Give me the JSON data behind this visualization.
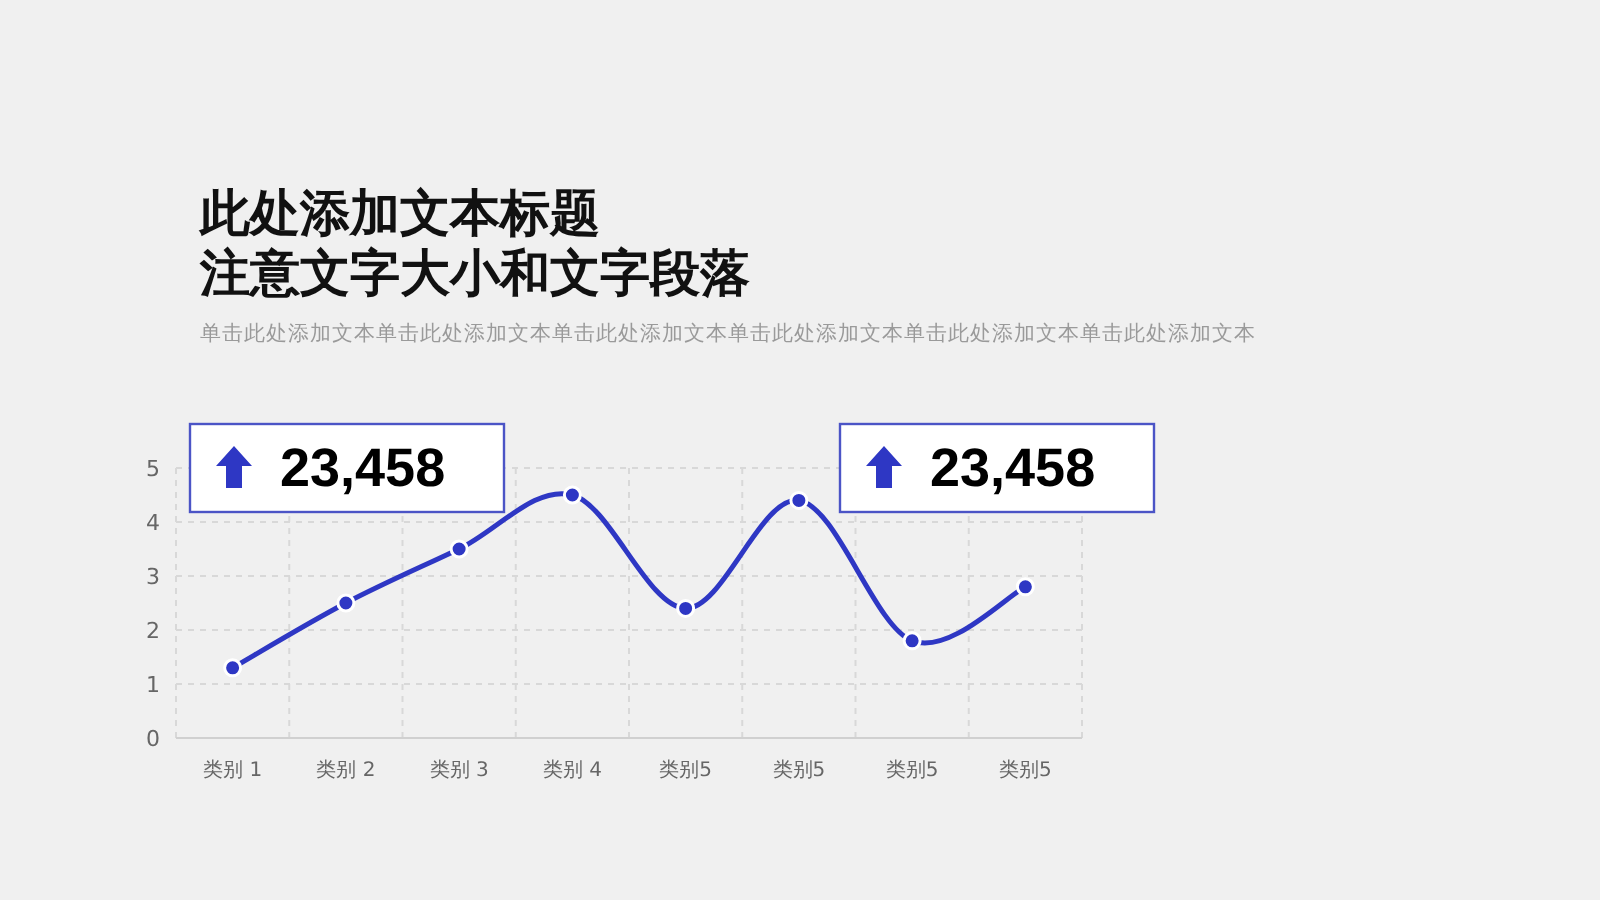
{
  "chart_data": {
    "type": "line",
    "title": "此处添加文本标题",
    "subtitle": "注意文字大小和文字段落",
    "categories": [
      "类别 1",
      "类别 2",
      "类别 3",
      "类别 4",
      "类别5",
      "类别5",
      "类别5",
      "类别5"
    ],
    "series": [
      {
        "color": "#2e37c4",
        "values": [
          1.3,
          2.5,
          3.5,
          4.5,
          2.4,
          4.4,
          1.8,
          2.8
        ]
      }
    ],
    "ylim": [
      0,
      5
    ],
    "yticks": [
      0,
      1,
      2,
      3,
      4,
      5
    ],
    "grid": true,
    "marker": "circle",
    "line_style": "solid",
    "annotations": [
      "单击此处添加文本单击此处添加文本单击此处添加文本单击此处添加文本单击此处添加文本单击此处添加文本",
      "23,458",
      "23,458"
    ]
  }
}
